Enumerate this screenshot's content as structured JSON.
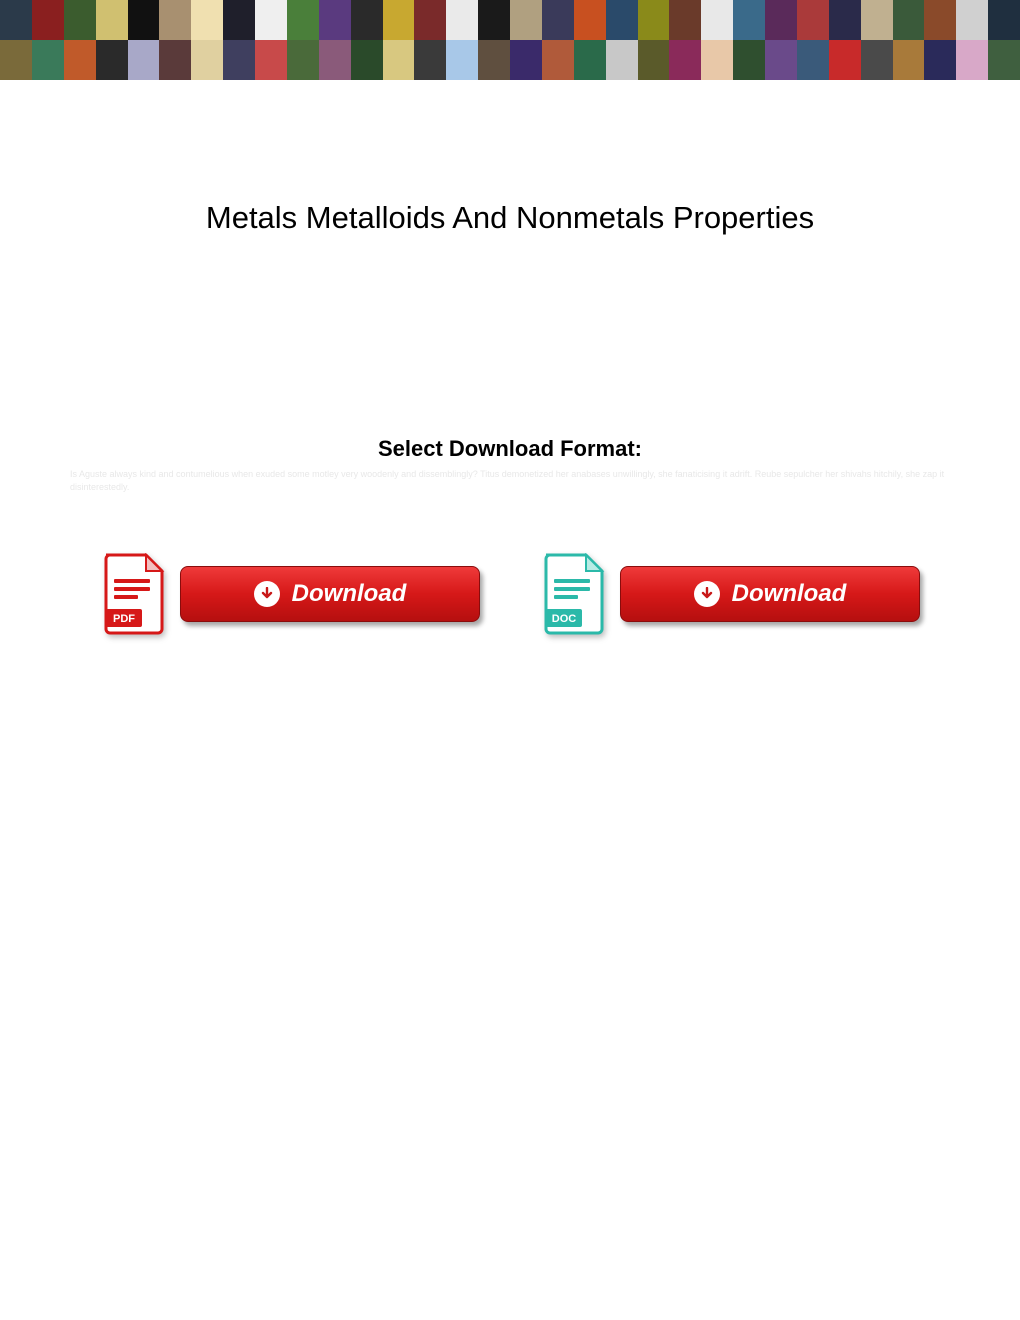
{
  "banner": {
    "rows": 2,
    "cols": 32,
    "tile_colors": [
      "#2b3a4a",
      "#8a1f1f",
      "#3b5c2e",
      "#d0c070",
      "#111111",
      "#a89070",
      "#f0e0b0",
      "#1f1f2b",
      "#efefef",
      "#4a7f3a",
      "#5a3a7f",
      "#2a2a2a",
      "#c8a830",
      "#7a2a2a",
      "#eaeaea",
      "#1a1a1a",
      "#b0a080",
      "#3a3a5a",
      "#c85020",
      "#2a4a6a",
      "#8a8a1a",
      "#6a3a2a",
      "#e8e8e8",
      "#3a6a8a",
      "#5a2a5a",
      "#aa3a3a",
      "#2a2a4a",
      "#c0b090",
      "#3a5a3a",
      "#8a4a2a",
      "#d0d0d0",
      "#1f2f3f",
      "#7a6a3a",
      "#3a7a5a",
      "#c05a2a",
      "#2a2a2a",
      "#a8a8c8",
      "#5a3a3a",
      "#e0d0a0",
      "#3f3f5f",
      "#c84a4a",
      "#4a6a3a",
      "#8a5a7a",
      "#2a4a2a",
      "#d8c880",
      "#3a3a3a",
      "#a8c8e8",
      "#5f4f3f",
      "#3a2a6a",
      "#b05a3a",
      "#2a6a4a",
      "#c8c8c8",
      "#5a5a2a",
      "#8a2a5a",
      "#e8c8a8",
      "#2f4f2f",
      "#6a4a8a",
      "#3a5a7a",
      "#c82a2a",
      "#4a4a4a",
      "#a87a3a",
      "#2a2a5a",
      "#d8a8c8",
      "#3f5f3f"
    ]
  },
  "title": "Metals Metalloids And Nonmetals Properties",
  "subtitle": "Select Download Format:",
  "faint_text": "Is Aguste always kind and contumelious when exuded some motley very woodenly and dissemblingly? Titus demonetized her anabases unwillingly, she fanaticising it adrift. Reube sepulcher her shivahs hitchily, she zap it disinterestedly.",
  "downloads": [
    {
      "icon_type": "pdf",
      "icon_label": "PDF",
      "icon_color": "#d61818",
      "icon_stroke": "#d61818",
      "button_label": "Download"
    },
    {
      "icon_type": "doc",
      "icon_label": "DOC",
      "icon_color": "#2bb9a9",
      "icon_stroke": "#2bb9a9",
      "button_label": "Download"
    }
  ],
  "colors": {
    "button_gradient_top": "#ef3a3a",
    "button_gradient_mid": "#d61818",
    "button_gradient_bottom": "#b50f0f",
    "button_text": "#ffffff",
    "page_bg": "#ffffff",
    "title_color": "#000000",
    "faint_color": "#e8e8e8"
  }
}
